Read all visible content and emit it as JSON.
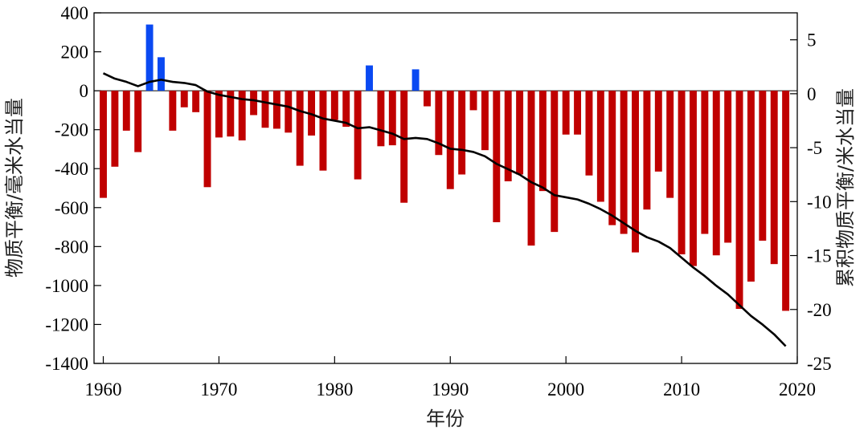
{
  "chart_data": {
    "type": "bar+line",
    "xlabel": "年份",
    "ylabel_left": "物质平衡/毫米水当量",
    "ylabel_right": "累积物质平衡/米水当量",
    "left_ylim": [
      -1400,
      400
    ],
    "right_ylim": [
      -25,
      7.5
    ],
    "xlim": [
      1959.2,
      2020
    ],
    "x_ticks": [
      1960,
      1970,
      1980,
      1990,
      2000,
      2010,
      2020
    ],
    "left_ticks": [
      400,
      200,
      0,
      -200,
      -400,
      -600,
      -800,
      -1000,
      -1200,
      -1400
    ],
    "right_ticks": [
      5,
      0,
      -5,
      -10,
      -15,
      -20,
      -25
    ],
    "positive_color": "#0a49f2",
    "negative_color": "#c00000",
    "line_color": "#000000",
    "years": [
      1960,
      1961,
      1962,
      1963,
      1964,
      1965,
      1966,
      1967,
      1968,
      1969,
      1970,
      1971,
      1972,
      1973,
      1974,
      1975,
      1976,
      1977,
      1978,
      1979,
      1980,
      1981,
      1982,
      1983,
      1984,
      1985,
      1986,
      1987,
      1988,
      1989,
      1990,
      1991,
      1992,
      1993,
      1994,
      1995,
      1996,
      1997,
      1998,
      1999,
      2000,
      2001,
      2002,
      2003,
      2004,
      2005,
      2006,
      2007,
      2008,
      2009,
      2010,
      2011,
      2012,
      2013,
      2014,
      2015,
      2016,
      2017,
      2018,
      2019
    ],
    "annual_balance": [
      -550,
      -390,
      -205,
      -315,
      340,
      172,
      -205,
      -85,
      -110,
      -495,
      -240,
      -235,
      -255,
      -125,
      -190,
      -195,
      -215,
      -385,
      -230,
      -410,
      -150,
      -185,
      -455,
      130,
      -285,
      -280,
      -575,
      110,
      -80,
      -330,
      -505,
      -430,
      -100,
      -305,
      -675,
      -465,
      -430,
      -795,
      -515,
      -725,
      -225,
      -225,
      -435,
      -570,
      -690,
      -735,
      -830,
      -610,
      -415,
      -550,
      -840,
      -900,
      -735,
      -845,
      -780,
      -1120,
      -980,
      -770,
      -890,
      -1130
    ],
    "cumulative_balance": [
      1.9,
      1.4,
      1.1,
      0.7,
      1.1,
      1.3,
      1.1,
      1.0,
      0.8,
      0.2,
      -0.1,
      -0.3,
      -0.5,
      -0.6,
      -0.8,
      -1.0,
      -1.2,
      -1.6,
      -1.9,
      -2.3,
      -2.5,
      -2.7,
      -3.2,
      -3.1,
      -3.4,
      -3.7,
      -4.2,
      -4.1,
      -4.2,
      -4.6,
      -5.1,
      -5.2,
      -5.4,
      -5.8,
      -6.5,
      -7.0,
      -7.5,
      -8.2,
      -8.7,
      -9.4,
      -9.6,
      -9.8,
      -10.2,
      -10.7,
      -11.3,
      -12.0,
      -12.7,
      -13.3,
      -13.7,
      -14.3,
      -15.2,
      -16.1,
      -16.9,
      -17.8,
      -18.6,
      -19.6,
      -20.6,
      -21.4,
      -22.3,
      -23.4
    ]
  }
}
